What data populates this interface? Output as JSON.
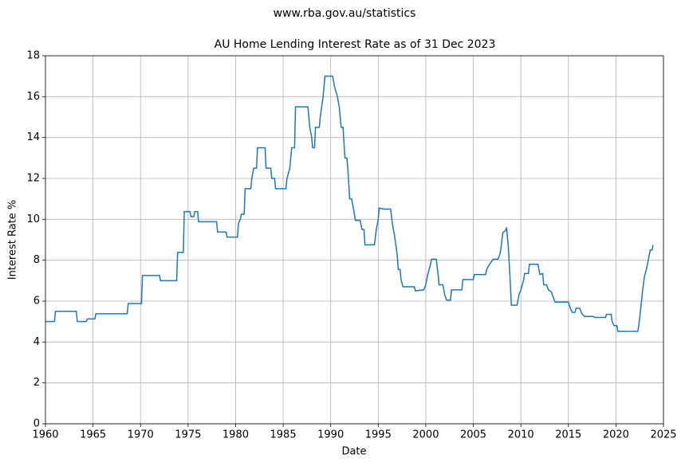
{
  "chart_data": {
    "type": "line",
    "suptitle": "www.rba.gov.au/statistics",
    "title": "AU Home Lending Interest Rate as of 31 Dec 2023",
    "xlabel": "Date",
    "ylabel": "Interest Rate %",
    "color": "#1f77b4",
    "grid": true,
    "xlim": [
      1960,
      2025
    ],
    "xticks": [
      1960,
      1965,
      1970,
      1975,
      1980,
      1985,
      1990,
      1995,
      2000,
      2005,
      2010,
      2015,
      2020,
      2025
    ],
    "ylim": [
      0,
      18
    ],
    "yticks": [
      0,
      2,
      4,
      6,
      8,
      10,
      12,
      14,
      16,
      18
    ],
    "x": [
      1960,
      1960.95,
      1961.05,
      1963.25,
      1963.35,
      1964.3,
      1964.4,
      1965.2,
      1965.3,
      1968.6,
      1968.7,
      1970.1,
      1970.2,
      1972.0,
      1972.1,
      1973.8,
      1973.9,
      1974.5,
      1974.6,
      1975.2,
      1975.3,
      1975.6,
      1975.7,
      1976.0,
      1976.1,
      1978.0,
      1978.1,
      1979.0,
      1979.1,
      1980.2,
      1980.3,
      1980.5,
      1980.6,
      1980.9,
      1981.0,
      1981.6,
      1981.7,
      1981.9,
      1982.2,
      1982.3,
      1983.1,
      1983.2,
      1983.7,
      1983.8,
      1984.1,
      1984.2,
      1985.3,
      1985.4,
      1985.7,
      1985.9,
      1986.2,
      1986.3,
      1987.6,
      1987.8,
      1988.0,
      1988.1,
      1988.3,
      1988.4,
      1988.8,
      1988.9,
      1989.2,
      1989.4,
      1990.2,
      1990.4,
      1990.7,
      1990.9,
      1991.1,
      1991.3,
      1991.5,
      1991.7,
      1991.8,
      1992.0,
      1992.2,
      1992.4,
      1992.6,
      1993.1,
      1993.3,
      1993.5,
      1993.6,
      1994.6,
      1994.8,
      1995.0,
      1995.1,
      1995.6,
      1996.3,
      1996.5,
      1996.7,
      1997.0,
      1997.1,
      1997.3,
      1997.4,
      1997.6,
      1998.8,
      1998.9,
      1999.8,
      2000.0,
      2000.2,
      2000.5,
      2000.6,
      2001.1,
      2001.3,
      2001.4,
      2001.8,
      2002.0,
      2002.2,
      2002.6,
      2002.7,
      2003.8,
      2003.9,
      2005.0,
      2005.1,
      2006.3,
      2006.4,
      2006.7,
      2007.1,
      2007.6,
      2007.8,
      2007.9,
      2008.1,
      2008.4,
      2008.5,
      2008.7,
      2008.9,
      2009.0,
      2009.6,
      2009.8,
      2010.0,
      2010.3,
      2010.4,
      2010.8,
      2010.9,
      2011.8,
      2012.0,
      2012.3,
      2012.4,
      2012.7,
      2012.9,
      2013.2,
      2013.4,
      2013.6,
      2015.0,
      2015.2,
      2015.4,
      2015.7,
      2015.8,
      2016.2,
      2016.4,
      2016.7,
      2017.6,
      2017.8,
      2018.9,
      2019.0,
      2019.5,
      2019.6,
      2019.8,
      2020.1,
      2020.2,
      2022.3,
      2022.4,
      2022.6,
      2022.8,
      2023.0,
      2023.2,
      2023.4,
      2023.6,
      2023.8,
      2023.9
    ],
    "values": [
      5.0,
      5.0,
      5.5,
      5.5,
      5.0,
      5.0,
      5.13,
      5.13,
      5.38,
      5.38,
      5.88,
      5.88,
      7.25,
      7.25,
      7.0,
      7.0,
      8.38,
      8.38,
      10.38,
      10.38,
      10.13,
      10.13,
      10.38,
      10.38,
      9.88,
      9.88,
      9.38,
      9.38,
      9.13,
      9.13,
      9.8,
      10.0,
      10.25,
      10.25,
      11.5,
      11.5,
      12.0,
      12.5,
      12.5,
      13.5,
      13.5,
      12.5,
      12.5,
      12.0,
      12.0,
      11.5,
      11.5,
      12.0,
      12.5,
      13.5,
      13.5,
      15.5,
      15.5,
      14.5,
      14.0,
      13.5,
      13.5,
      14.5,
      14.5,
      15.0,
      16.0,
      17.0,
      17.0,
      16.5,
      16.0,
      15.5,
      14.5,
      14.5,
      13.0,
      13.0,
      12.5,
      11.0,
      11.0,
      10.5,
      9.95,
      9.95,
      9.5,
      9.5,
      8.75,
      8.75,
      9.5,
      10.0,
      10.55,
      10.5,
      10.5,
      9.75,
      9.25,
      8.25,
      7.55,
      7.55,
      7.05,
      6.7,
      6.7,
      6.5,
      6.55,
      6.8,
      7.3,
      7.8,
      8.05,
      8.05,
      7.3,
      6.8,
      6.8,
      6.3,
      6.05,
      6.05,
      6.55,
      6.55,
      7.05,
      7.05,
      7.3,
      7.3,
      7.55,
      7.8,
      8.05,
      8.05,
      8.3,
      8.55,
      9.35,
      9.45,
      9.6,
      8.55,
      6.8,
      5.8,
      5.8,
      6.3,
      6.55,
      7.05,
      7.35,
      7.35,
      7.8,
      7.8,
      7.3,
      7.35,
      6.8,
      6.8,
      6.55,
      6.45,
      6.2,
      5.95,
      5.95,
      5.65,
      5.45,
      5.45,
      5.65,
      5.65,
      5.4,
      5.25,
      5.25,
      5.2,
      5.2,
      5.35,
      5.35,
      5.0,
      4.8,
      4.8,
      4.52,
      4.52,
      4.8,
      5.6,
      6.5,
      7.2,
      7.55,
      8.0,
      8.5,
      8.5,
      8.75
    ]
  }
}
